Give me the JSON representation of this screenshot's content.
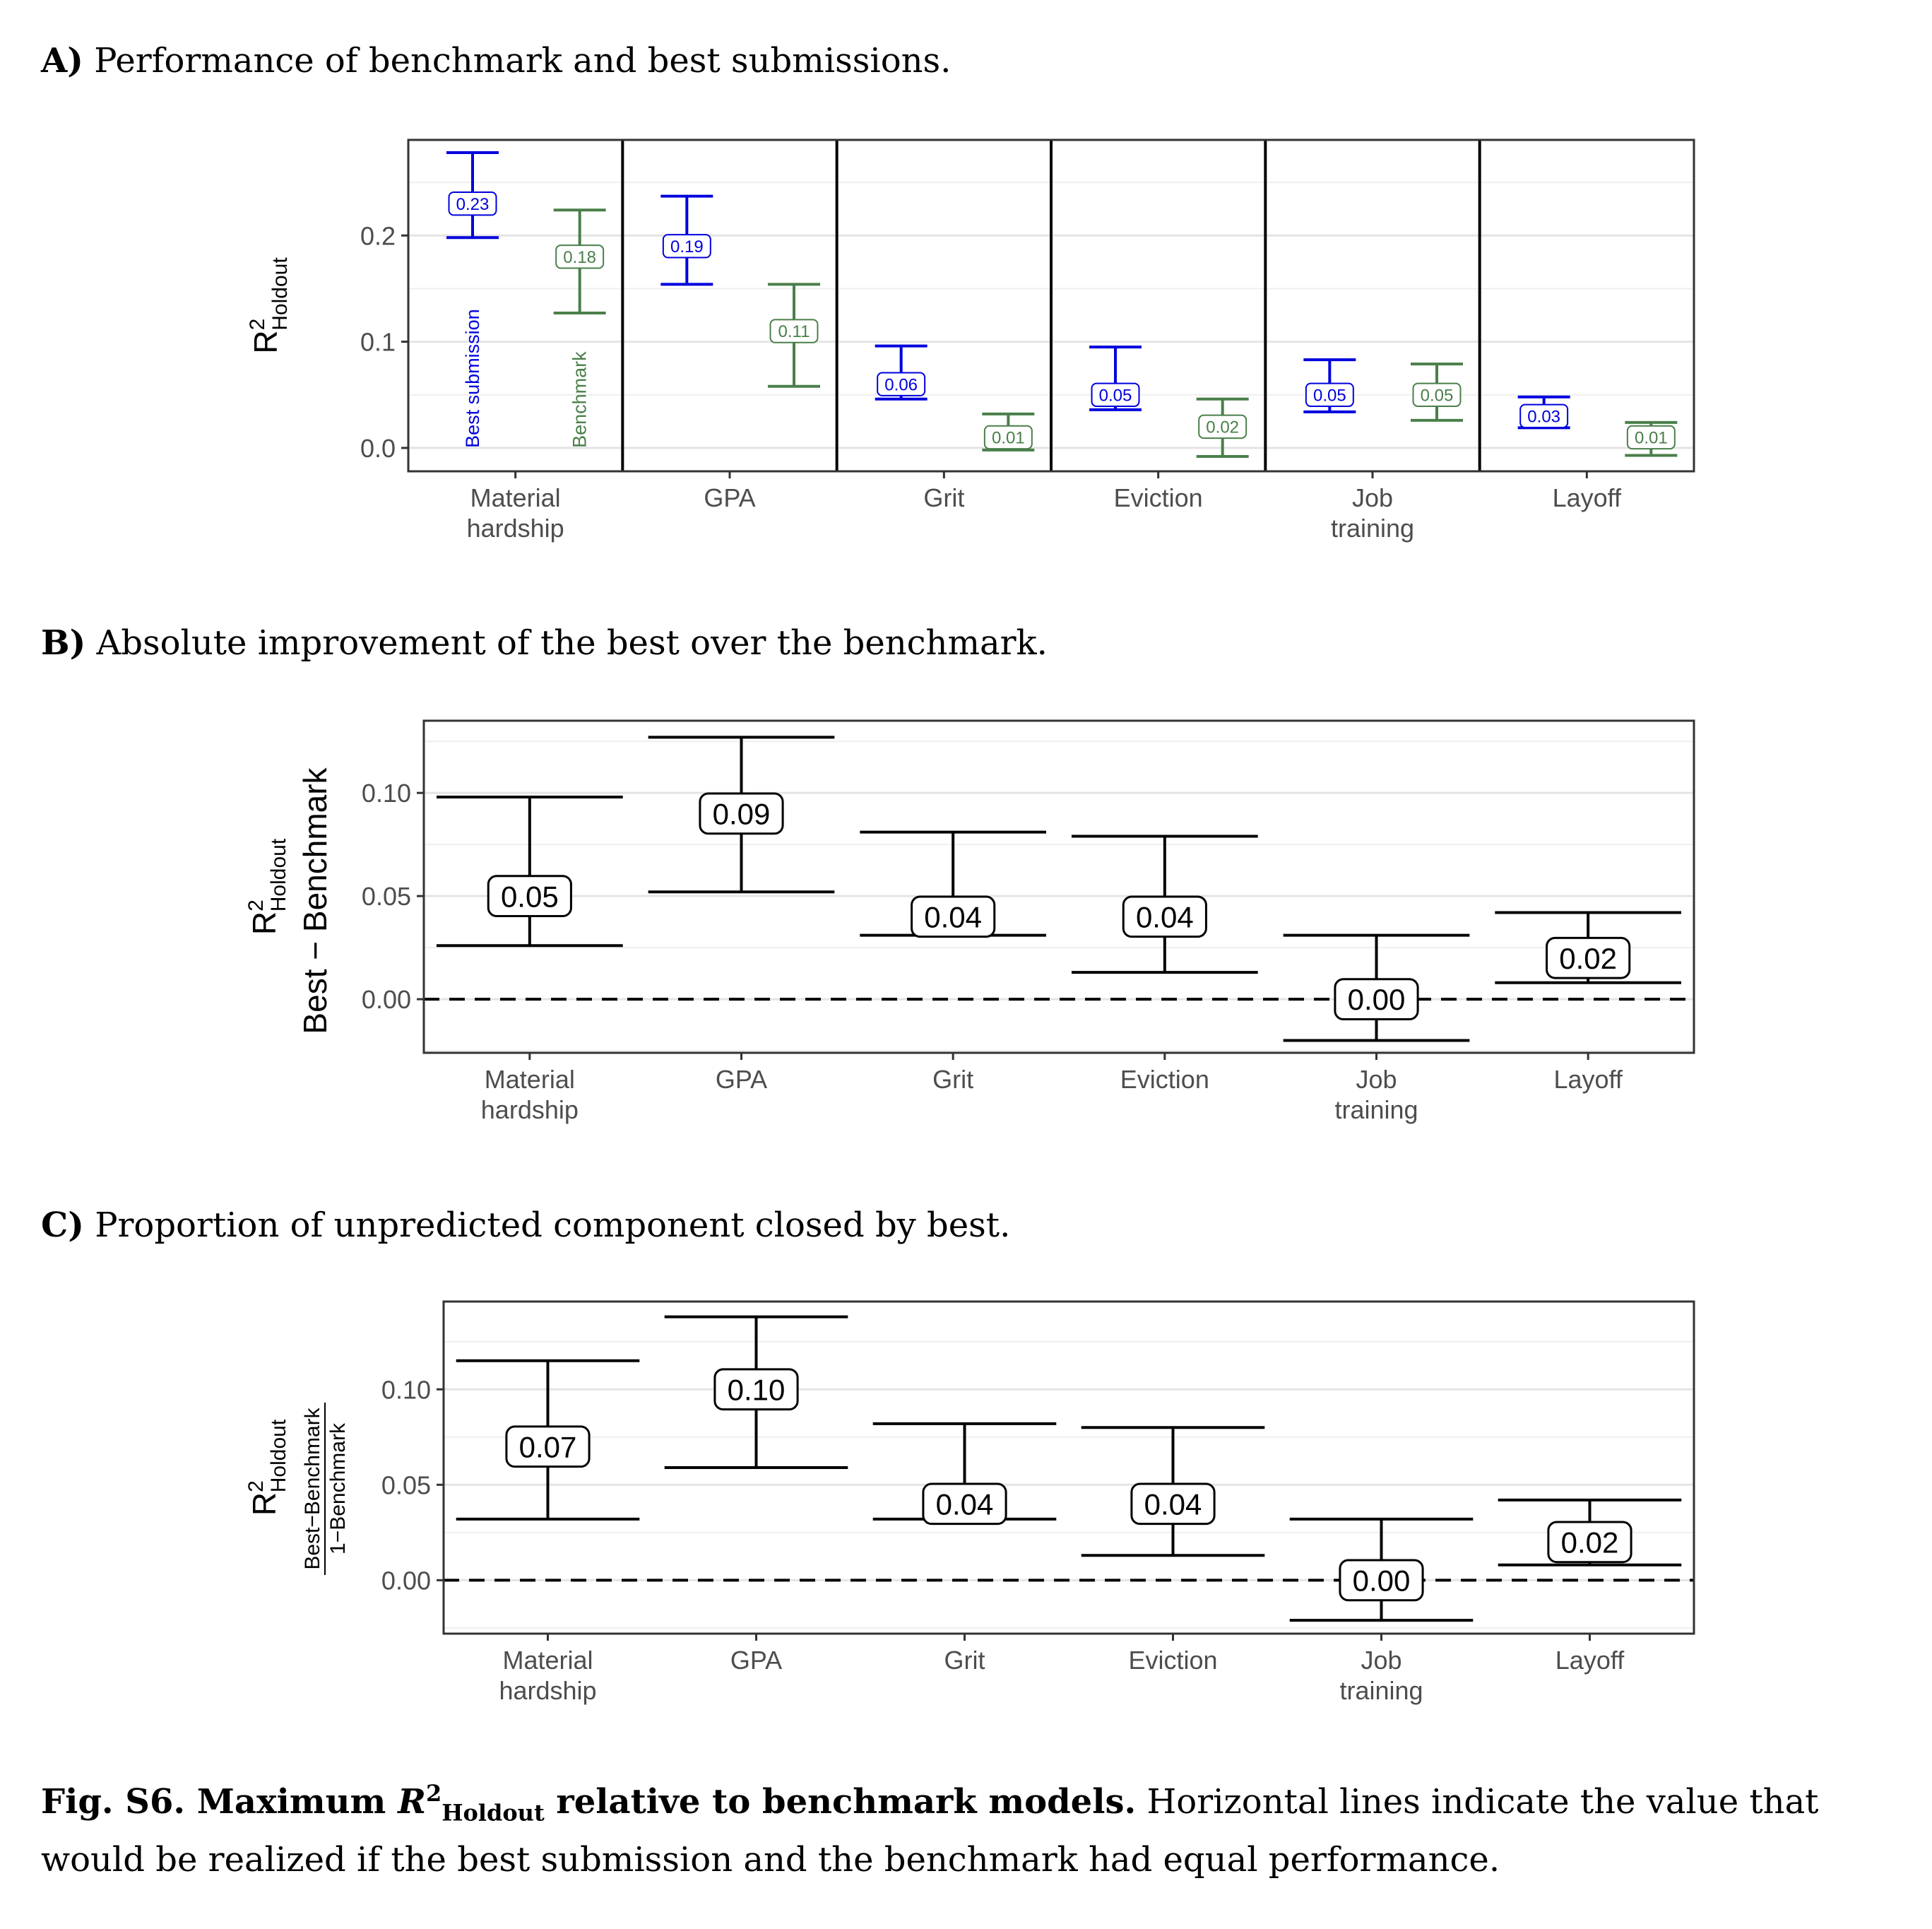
{
  "panels": [
    {
      "letter": "A)",
      "title": "Performance of benchmark and best submissions.",
      "ylabel_main": "R",
      "ylabel_sup": "2",
      "ylabel_sub": "Holdout",
      "ylabel_extra": "",
      "ylabel_frac_num": "",
      "ylabel_frac_den": ""
    },
    {
      "letter": "B)",
      "title": "Absolute improvement of the best over the benchmark.",
      "ylabel_main": "R",
      "ylabel_sup": "2",
      "ylabel_sub": "Holdout",
      "ylabel_extra": "Best − Benchmark",
      "ylabel_frac_num": "",
      "ylabel_frac_den": ""
    },
    {
      "letter": "C)",
      "title": "Proportion of unpredicted component closed by best.",
      "ylabel_main": "R",
      "ylabel_sup": "2",
      "ylabel_sub": "Holdout",
      "ylabel_extra": "",
      "ylabel_frac_num": "Best−Benchmark",
      "ylabel_frac_den": "1−Benchmark"
    }
  ],
  "chart_data": [
    {
      "type": "errorbar",
      "categories": [
        [
          "Material",
          "hardship"
        ],
        [
          "GPA"
        ],
        [
          "Grit"
        ],
        [
          "Eviction"
        ],
        [
          "Job",
          "training"
        ],
        [
          "Layoff"
        ]
      ],
      "ylim": [
        -0.022,
        0.29
      ],
      "yticks": [
        0.0,
        0.1,
        0.2
      ],
      "ytick_labels": [
        "0.0",
        "0.1",
        "0.2"
      ],
      "grid": true,
      "facet_separators": true,
      "series": [
        {
          "name": "Best submission",
          "color": "#0000dd",
          "estimates": [
            0.23,
            0.19,
            0.06,
            0.05,
            0.05,
            0.03
          ],
          "labels": [
            "0.23",
            "0.19",
            "0.06",
            "0.05",
            "0.05",
            "0.03"
          ],
          "lower": [
            0.198,
            0.154,
            0.046,
            0.036,
            0.034,
            0.019
          ],
          "upper": [
            0.278,
            0.237,
            0.096,
            0.095,
            0.083,
            0.048
          ]
        },
        {
          "name": "Benchmark",
          "color": "#4a7f4a",
          "estimates": [
            0.18,
            0.11,
            0.01,
            0.02,
            0.05,
            0.01
          ],
          "labels": [
            "0.18",
            "0.11",
            "0.01",
            "0.02",
            "0.05",
            "0.01"
          ],
          "lower": [
            0.127,
            0.058,
            -0.002,
            -0.008,
            0.026,
            -0.007
          ],
          "upper": [
            0.224,
            0.154,
            0.032,
            0.046,
            0.079,
            0.024
          ]
        }
      ]
    },
    {
      "type": "errorbar",
      "categories": [
        [
          "Material",
          "hardship"
        ],
        [
          "GPA"
        ],
        [
          "Grit"
        ],
        [
          "Eviction"
        ],
        [
          "Job",
          "training"
        ],
        [
          "Layoff"
        ]
      ],
      "ylim": [
        -0.026,
        0.135
      ],
      "yticks": [
        0.0,
        0.05,
        0.1
      ],
      "ytick_labels": [
        "0.00",
        "0.05",
        "0.10"
      ],
      "grid": true,
      "reference_line": 0.0,
      "series": [
        {
          "name": "",
          "color": "#000000",
          "estimates": [
            0.05,
            0.09,
            0.04,
            0.04,
            0.0,
            0.02
          ],
          "labels": [
            "0.05",
            "0.09",
            "0.04",
            "0.04",
            "0.00",
            "0.02"
          ],
          "lower": [
            0.026,
            0.052,
            0.031,
            0.013,
            -0.02,
            0.008
          ],
          "upper": [
            0.098,
            0.127,
            0.081,
            0.079,
            0.031,
            0.042
          ]
        }
      ]
    },
    {
      "type": "errorbar",
      "categories": [
        [
          "Material",
          "hardship"
        ],
        [
          "GPA"
        ],
        [
          "Grit"
        ],
        [
          "Eviction"
        ],
        [
          "Job",
          "training"
        ],
        [
          "Layoff"
        ]
      ],
      "ylim": [
        -0.028,
        0.146
      ],
      "yticks": [
        0.0,
        0.05,
        0.1
      ],
      "ytick_labels": [
        "0.00",
        "0.05",
        "0.10"
      ],
      "grid": true,
      "reference_line": 0.0,
      "series": [
        {
          "name": "",
          "color": "#000000",
          "estimates": [
            0.07,
            0.1,
            0.04,
            0.04,
            0.0,
            0.02
          ],
          "labels": [
            "0.07",
            "0.10",
            "0.04",
            "0.04",
            "0.00",
            "0.02"
          ],
          "lower": [
            0.032,
            0.059,
            0.032,
            0.013,
            -0.021,
            0.008
          ],
          "upper": [
            0.115,
            0.138,
            0.082,
            0.08,
            0.032,
            0.042
          ]
        }
      ]
    }
  ],
  "caption": {
    "lead": "Fig. S6.  Maximum ",
    "r": "R",
    "sup": "2",
    "sub": "Holdout",
    "lead_end": " relative to benchmark models.",
    "text": " Horizontal lines indicate the value that would be realized if the best submission and the benchmark had equal performance."
  }
}
